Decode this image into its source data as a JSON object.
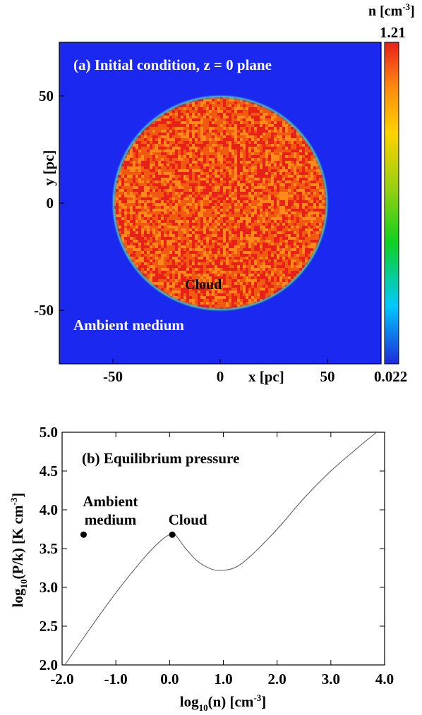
{
  "chart_data": [
    {
      "type": "heatmap",
      "title": "(a) Initial condition, z = 0 plane",
      "xlabel": "x [pc]",
      "ylabel": "y [pc]",
      "xlim": [
        -75,
        75
      ],
      "ylim": [
        -75,
        75
      ],
      "x_ticks": [
        "-50",
        "0",
        "50"
      ],
      "y_ticks": [
        "50",
        "0",
        "-50"
      ],
      "cloud": {
        "shape": "circle",
        "center": [
          0,
          0
        ],
        "radius": 50,
        "label": "Cloud"
      },
      "ambient_label": "Ambient medium",
      "colorbar": {
        "label_main": "n [cm",
        "label_exp": "-3",
        "label_close": "]",
        "max": "1.21",
        "min": "0.022",
        "cloud_value": 0.9,
        "ambient_value": 0.022
      },
      "colors": {
        "ambient": "#1a28f0",
        "cloud_base": "#f05a10",
        "cloud_hot": "#e8201a",
        "cloud_warm": "#ff8a1a",
        "title_text": "#ffffff"
      }
    },
    {
      "type": "line",
      "title": "(b) Equilibrium pressure",
      "xlabel": "log10(n) [cm-3]",
      "ylabel": "log10(P/k) [K cm-3]",
      "xlim": [
        -2.0,
        4.0
      ],
      "ylim": [
        2.0,
        5.0
      ],
      "x_ticks": [
        "-2.0",
        "-1.0",
        "0.0",
        "1.0",
        "2.0",
        "3.0",
        "4.0"
      ],
      "y_ticks": [
        "2.0",
        "2.5",
        "3.0",
        "3.5",
        "4.0",
        "4.5",
        "5.0"
      ],
      "series": [
        {
          "x": [
            -1.95,
            -1.5,
            -1.0,
            -0.5,
            -0.2,
            0.0,
            0.1,
            0.3,
            0.5,
            0.7,
            0.9,
            1.2,
            1.5,
            2.0,
            2.5,
            3.0,
            3.5,
            3.85
          ],
          "y": [
            2.0,
            2.45,
            2.93,
            3.36,
            3.58,
            3.68,
            3.68,
            3.5,
            3.35,
            3.26,
            3.22,
            3.25,
            3.4,
            3.75,
            4.15,
            4.5,
            4.8,
            5.0
          ]
        }
      ],
      "points": [
        {
          "label_lines": [
            "Ambient",
            "medium"
          ],
          "x": -1.6,
          "y": 3.68
        },
        {
          "label_lines": [
            "Cloud"
          ],
          "x": 0.05,
          "y": 3.68
        }
      ]
    }
  ],
  "labels": {
    "x_log_prefix": "log",
    "x_log_sub": "10",
    "x_log_rest": "(n) [cm",
    "x_log_exp": "-3",
    "x_log_close": "]",
    "y_log_prefix": "log",
    "y_log_sub": "10",
    "y_log_rest": "(P/k) [K cm",
    "y_log_exp": "-3",
    "y_log_close": "]"
  }
}
